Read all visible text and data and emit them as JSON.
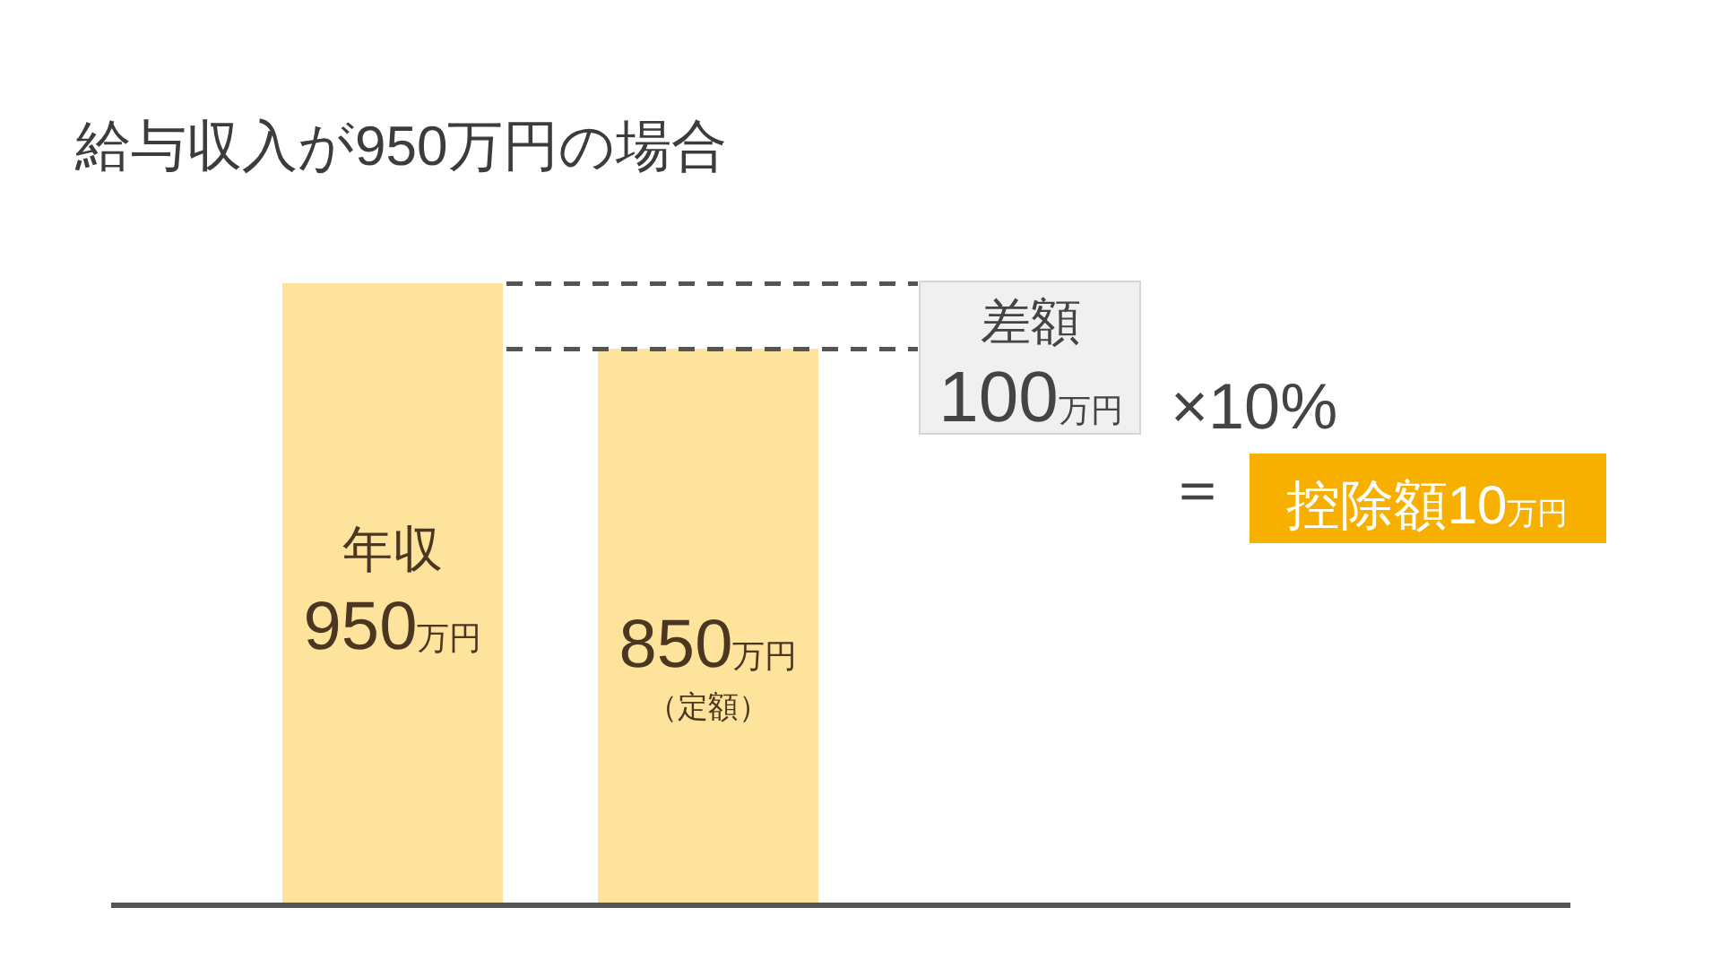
{
  "chart_data": {
    "type": "bar",
    "title": "給与収入が950万円の場合",
    "categories": [
      "年収",
      "（定額）"
    ],
    "values": [
      950,
      850
    ],
    "color": "#fde39c",
    "value_labels": [
      "950万円",
      "850万円"
    ],
    "ref_lines": [
      {
        "axis": "y",
        "value": 950,
        "line_style": "dashed",
        "color": "#555555"
      },
      {
        "axis": "y",
        "value": 850,
        "line_style": "dashed",
        "color": "#555555"
      }
    ],
    "annotations": [
      "差額\n100万円",
      "×10%",
      "＝",
      "控除額10万円"
    ]
  }
}
